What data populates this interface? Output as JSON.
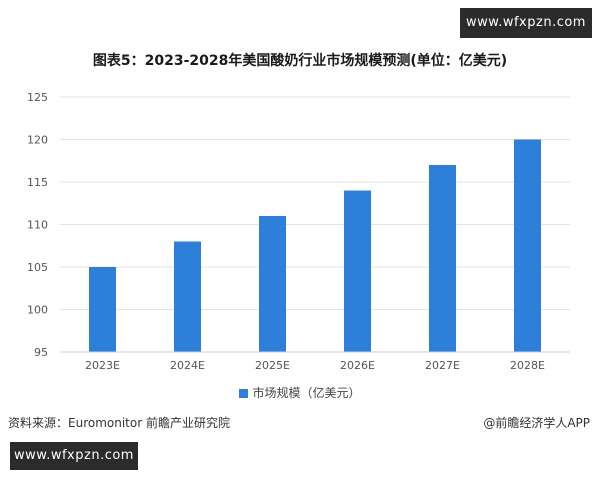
{
  "watermark_top": "www.wfxpzn.com",
  "watermark_bottom": "www.wfxpzn.com",
  "footer": {
    "source": "资料来源：Euromonitor 前瞻产业研究院",
    "credit": "@前瞻经济学人APP"
  },
  "colors": {
    "bar": "#2e7fd9",
    "grid": "#e3e3e3"
  },
  "chart_data": {
    "type": "bar",
    "title": "图表5：2023-2028年美国酸奶行业市场规模预测(单位：亿美元)",
    "categories": [
      "2023E",
      "2024E",
      "2025E",
      "2026E",
      "2027E",
      "2028E"
    ],
    "series": [
      {
        "name": "市场规模（亿美元）",
        "values": [
          105,
          108,
          111,
          114,
          117,
          120
        ]
      }
    ],
    "ylim": [
      95,
      125
    ],
    "yticks": [
      95,
      100,
      105,
      110,
      115,
      120,
      125
    ],
    "grid": true,
    "legend": "bottom"
  }
}
